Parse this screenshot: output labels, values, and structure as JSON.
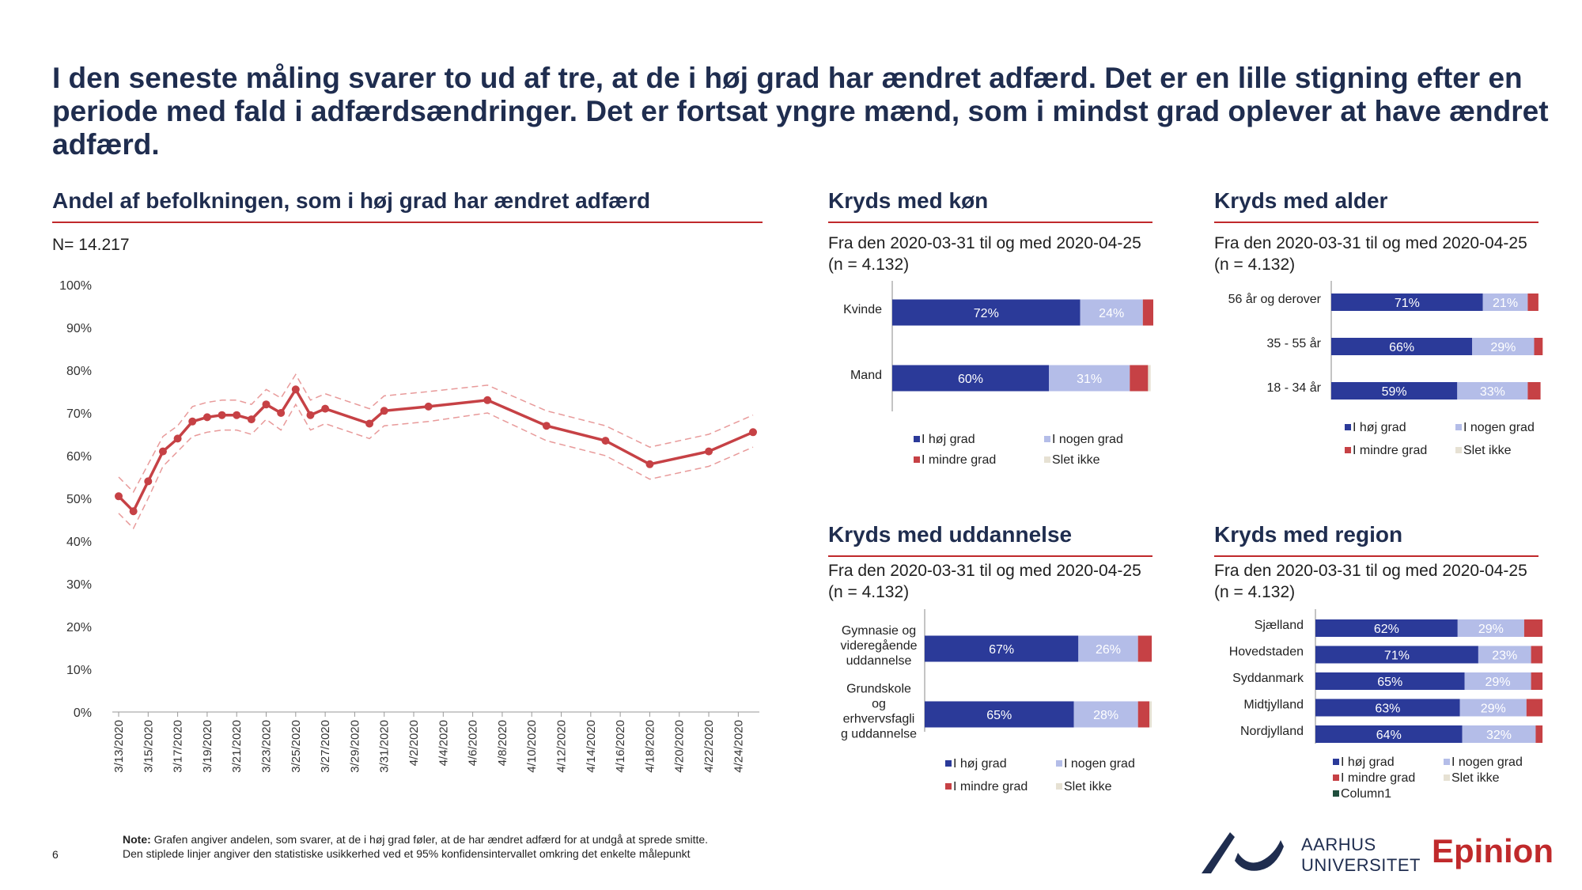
{
  "headline": "I den seneste måling svarer to ud af tre, at de i høj grad har ændret adfærd. Det er en lille stigning efter en periode med fald i adfærdsændringer. Det er fortsat yngre mænd, som i mindst grad oplever at have ændret adfærd.",
  "main_chart": {
    "title": "Andel af befolkningen, som i høj grad har ændret adfærd",
    "n_label": "N= 14.217"
  },
  "subtitle_period": "Fra den 2020-03-31 til og med 2020-04-25",
  "subtitle_n": "(n = 4.132)",
  "colors": {
    "hoej": "#2b3a99",
    "nogen": "#b4bde8",
    "mindre": "#c64145",
    "slet": "#e6e1d3",
    "column1": "#1f4e3d",
    "line": "#c64145",
    "rule": "#c0292b",
    "title": "#1f2d4f"
  },
  "note": {
    "bold": "Note:",
    "line1": " Grafen angiver andelen, som svarer, at de i høj grad føler, at de har ændret adfærd for at undgå at sprede smitte.",
    "line2": "Den stiplede linjer angiver den statistiske usikkerhed ved et 95% konfidensintervallet omkring det enkelte målepunkt"
  },
  "page_number": "6",
  "logos": {
    "au_line1": "AARHUS",
    "au_line2": "UNIVERSITET",
    "epinion": "Epinion"
  },
  "chart_data": [
    {
      "type": "line",
      "title": "Andel af befolkningen, som i høj grad har ændret adfærd",
      "ylim": [
        0,
        100
      ],
      "yticks": [
        "100%",
        "90%",
        "80%",
        "70%",
        "60%",
        "50%",
        "40%",
        "30%",
        "20%",
        "10%",
        "0%"
      ],
      "xticks": [
        "3/13/2020",
        "3/15/2020",
        "3/17/2020",
        "3/19/2020",
        "3/21/2020",
        "3/23/2020",
        "3/25/2020",
        "3/27/2020",
        "3/29/2020",
        "3/31/2020",
        "4/2/2020",
        "4/4/2020",
        "4/6/2020",
        "4/8/2020",
        "4/10/2020",
        "4/12/2020",
        "4/14/2020",
        "4/16/2020",
        "4/18/2020",
        "4/20/2020",
        "4/22/2020",
        "4/24/2020"
      ],
      "x_start": "2020-03-13",
      "x_end": "2020-04-25",
      "points": [
        {
          "x": "2020-03-13",
          "y": 50.5,
          "lo": 46.5,
          "hi": 55
        },
        {
          "x": "2020-03-14",
          "y": 47,
          "lo": 43,
          "hi": 51.5
        },
        {
          "x": "2020-03-15",
          "y": 54,
          "lo": 50,
          "hi": 58
        },
        {
          "x": "2020-03-16",
          "y": 61,
          "lo": 57.5,
          "hi": 64.5
        },
        {
          "x": "2020-03-17",
          "y": 64,
          "lo": 61,
          "hi": 67
        },
        {
          "x": "2020-03-18",
          "y": 68,
          "lo": 64.5,
          "hi": 71.5
        },
        {
          "x": "2020-03-19",
          "y": 69,
          "lo": 65.5,
          "hi": 72.5
        },
        {
          "x": "2020-03-20",
          "y": 69.5,
          "lo": 66,
          "hi": 73
        },
        {
          "x": "2020-03-21",
          "y": 69.5,
          "lo": 66,
          "hi": 73
        },
        {
          "x": "2020-03-22",
          "y": 68.5,
          "lo": 65,
          "hi": 72
        },
        {
          "x": "2020-03-23",
          "y": 72,
          "lo": 68.5,
          "hi": 75.5
        },
        {
          "x": "2020-03-24",
          "y": 70,
          "lo": 66,
          "hi": 73.5
        },
        {
          "x": "2020-03-25",
          "y": 75.5,
          "lo": 72,
          "hi": 79
        },
        {
          "x": "2020-03-26",
          "y": 69.5,
          "lo": 66,
          "hi": 73
        },
        {
          "x": "2020-03-27",
          "y": 71,
          "lo": 67.5,
          "hi": 74.5
        },
        {
          "x": "2020-03-30",
          "y": 67.5,
          "lo": 64,
          "hi": 71
        },
        {
          "x": "2020-03-31",
          "y": 70.5,
          "lo": 67,
          "hi": 74
        },
        {
          "x": "2020-04-03",
          "y": 71.5,
          "lo": 68,
          "hi": 75
        },
        {
          "x": "2020-04-07",
          "y": 73,
          "lo": 70,
          "hi": 76.5
        },
        {
          "x": "2020-04-11",
          "y": 67,
          "lo": 63.5,
          "hi": 70.5
        },
        {
          "x": "2020-04-15",
          "y": 63.5,
          "lo": 60,
          "hi": 67
        },
        {
          "x": "2020-04-18",
          "y": 58,
          "lo": 54.5,
          "hi": 62
        },
        {
          "x": "2020-04-22",
          "y": 61,
          "lo": 57.5,
          "hi": 65
        },
        {
          "x": "2020-04-25",
          "y": 65.5,
          "lo": 62,
          "hi": 69.5
        }
      ]
    },
    {
      "type": "bar",
      "stacked": "horizontal-100%",
      "title": "Kryds med køn",
      "categories": [
        "Kvinde",
        "Mand"
      ],
      "series": [
        {
          "name": "I høj grad",
          "values": [
            72,
            60
          ]
        },
        {
          "name": "I nogen grad",
          "values": [
            24,
            31
          ]
        },
        {
          "name": "I mindre grad",
          "values": [
            4,
            7
          ]
        },
        {
          "name": "Slet ikke",
          "values": [
            0,
            1
          ]
        }
      ],
      "legend": "bottom"
    },
    {
      "type": "bar",
      "stacked": "horizontal-100%",
      "title": "Kryds med alder",
      "categories": [
        "56 år og derover",
        "35 - 55 år",
        "18 - 34 år"
      ],
      "series": [
        {
          "name": "I høj grad",
          "values": [
            71,
            66,
            59
          ]
        },
        {
          "name": "I nogen grad",
          "values": [
            21,
            29,
            33
          ]
        },
        {
          "name": "I mindre grad",
          "values": [
            5,
            4,
            6
          ]
        },
        {
          "name": "Slet ikke",
          "values": [
            0,
            0,
            0
          ]
        }
      ],
      "legend": "bottom"
    },
    {
      "type": "bar",
      "stacked": "horizontal-100%",
      "title": "Kryds med uddannelse",
      "categories": [
        "Gymnasie og videregående uddannelse",
        "Grundskole og erhvervsfaglig uddannelse"
      ],
      "series": [
        {
          "name": "I høj grad",
          "values": [
            67,
            65
          ]
        },
        {
          "name": "I nogen grad",
          "values": [
            26,
            28
          ]
        },
        {
          "name": "I mindre grad",
          "values": [
            6,
            5
          ]
        },
        {
          "name": "Slet ikke",
          "values": [
            0,
            1
          ]
        }
      ],
      "legend": "bottom"
    },
    {
      "type": "bar",
      "stacked": "horizontal-100%",
      "title": "Kryds med region",
      "categories": [
        "Sjælland",
        "Hovedstaden",
        "Syddanmark",
        "Midtjylland",
        "Nordjylland"
      ],
      "series": [
        {
          "name": "I høj grad",
          "values": [
            62,
            71,
            65,
            63,
            64
          ]
        },
        {
          "name": "I nogen grad",
          "values": [
            29,
            23,
            29,
            29,
            32
          ]
        },
        {
          "name": "I mindre grad",
          "values": [
            8,
            5,
            5,
            7,
            3
          ]
        },
        {
          "name": "Slet ikke",
          "values": [
            0,
            0,
            0,
            0,
            0
          ]
        },
        {
          "name": "Column1",
          "values": [
            0,
            0,
            0,
            0,
            0
          ]
        }
      ],
      "legend": "bottom"
    }
  ],
  "panels": {
    "gender": {
      "cat_labels": [
        [
          "Kvinde"
        ],
        [
          "Mand"
        ]
      ]
    },
    "age": {
      "cat_labels": [
        [
          "56 år og derover"
        ],
        [
          "35 - 55 år"
        ],
        [
          "18 - 34 år"
        ]
      ]
    },
    "education": {
      "cat_labels": [
        [
          "Gymnasie og",
          "videregående",
          "uddannelse"
        ],
        [
          "Grundskole",
          "og",
          "erhvervsfagli",
          "g uddannelse"
        ]
      ]
    },
    "region": {
      "cat_labels": [
        [
          "Sjælland"
        ],
        [
          "Hovedstaden"
        ],
        [
          "Syddanmark"
        ],
        [
          "Midtjylland"
        ],
        [
          "Nordjylland"
        ]
      ]
    }
  }
}
